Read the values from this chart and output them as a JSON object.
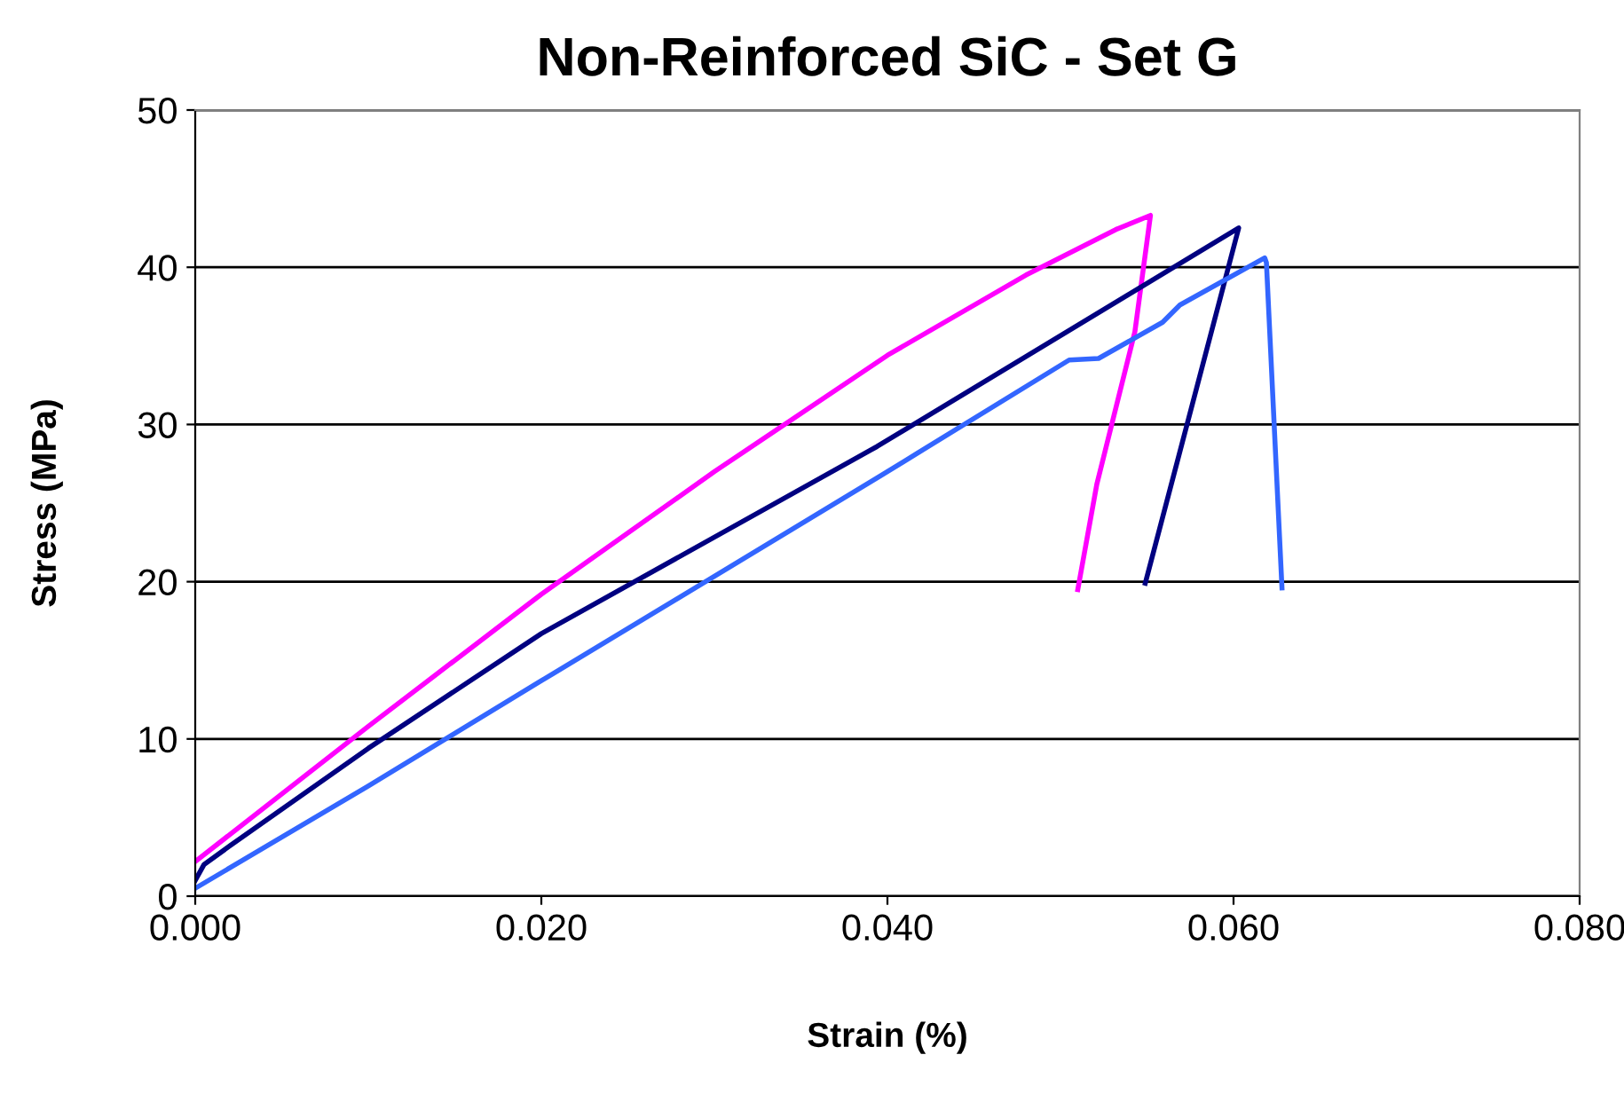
{
  "chart_data": {
    "type": "line",
    "title": "Non-Reinforced SiC - Set G",
    "xlabel": "Strain (%)",
    "ylabel": "Stress (MPa)",
    "xlim": [
      0,
      0.08
    ],
    "xticks": [
      {
        "value": 0,
        "label": "0.000"
      },
      {
        "value": 0.02,
        "label": "0.020"
      },
      {
        "value": 0.04,
        "label": "0.040"
      },
      {
        "value": 0.06,
        "label": "0.060"
      },
      {
        "value": 0.08,
        "label": "0.080"
      }
    ],
    "ylim": [
      0,
      50
    ],
    "yticks": [
      0,
      10,
      20,
      30,
      40,
      50
    ],
    "grid": "y",
    "marker": "none",
    "line_style": "solid",
    "series": [
      {
        "color": "#ff00ff",
        "x": [
          0,
          0.01,
          0.02,
          0.03,
          0.04,
          0.048,
          0.0532,
          0.0552,
          0.0543,
          0.0521,
          0.051
        ],
        "values": [
          2.2,
          10.8,
          19.2,
          27,
          34.4,
          39.5,
          42.4,
          43.3,
          35.9,
          26.2,
          19.5
        ]
      },
      {
        "color": "#000080",
        "x": [
          0,
          0.0005,
          0.002,
          0.01,
          0.02,
          0.0394,
          0.0603,
          0.0549
        ],
        "values": [
          1.0,
          2.0,
          3.2,
          9.4,
          16.7,
          28.6,
          42.5,
          19.9
        ]
      },
      {
        "color": "#3366ff",
        "x": [
          0,
          0.01,
          0.02,
          0.0394,
          0.0505,
          0.0522,
          0.0559,
          0.0569,
          0.0618,
          0.0619,
          0.0628
        ],
        "values": [
          0.5,
          7,
          13.7,
          26.6,
          34.1,
          34.2,
          36.5,
          37.6,
          40.6,
          40.3,
          19.6
        ]
      }
    ]
  }
}
